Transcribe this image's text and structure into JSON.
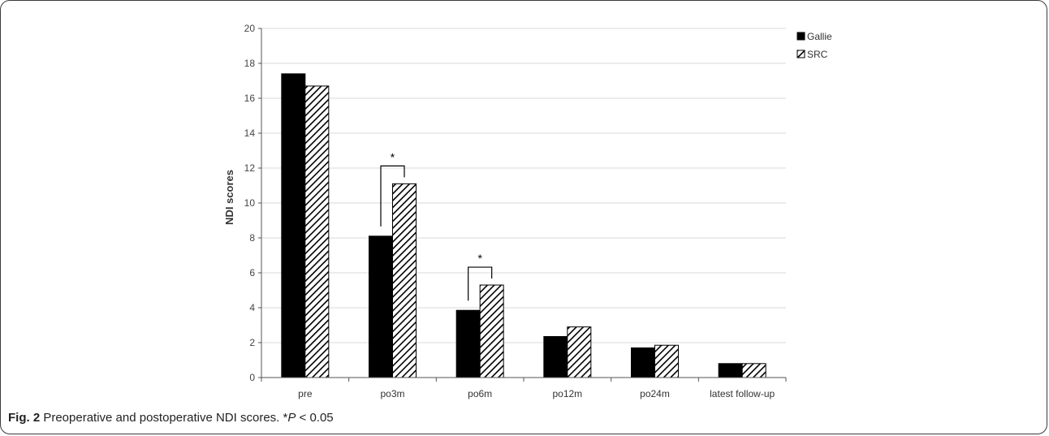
{
  "chart_data": {
    "type": "bar",
    "categories": [
      "pre",
      "po3m",
      "po6m",
      "po12m",
      "po24m",
      "latest follow-up"
    ],
    "series": [
      {
        "name": "Gallie",
        "values": [
          17.4,
          8.1,
          3.85,
          2.35,
          1.7,
          0.8
        ],
        "color": "#000000",
        "pattern": "solid"
      },
      {
        "name": "SRC",
        "values": [
          16.7,
          11.1,
          5.3,
          2.9,
          1.85,
          0.8
        ],
        "color": "#000000",
        "pattern": "diagonal-hatch"
      }
    ],
    "ylabel": "NDI scores",
    "ylim": [
      0,
      20
    ],
    "yticks": [
      0,
      2,
      4,
      6,
      8,
      10,
      12,
      14,
      16,
      18,
      20
    ],
    "grid": true,
    "legend": "top-right",
    "significance": [
      {
        "category": "po3m",
        "symbol": "*"
      },
      {
        "category": "po6m",
        "symbol": "*"
      }
    ]
  },
  "caption": {
    "label": "Fig. 2",
    "text": " Preoperative and postoperative NDI scores. *",
    "p_symbol": "P",
    "p_text": " < 0.05"
  }
}
